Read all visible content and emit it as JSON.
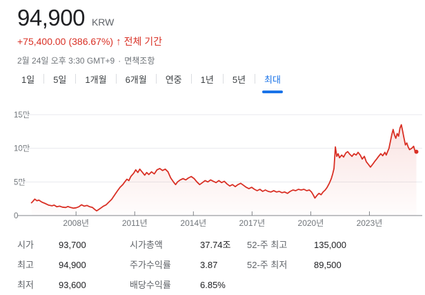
{
  "header": {
    "price": "94,900",
    "currency": "KRW",
    "change_amount": "+75,400.00",
    "change_percent": "(386.67%)",
    "change_arrow": "↑",
    "change_period": "전체 기간",
    "change_color": "#d93025",
    "datetime": "2월 24일 오후 3:30 GMT+9",
    "separator": "·",
    "disclaimer": "면책조항"
  },
  "tabs": {
    "items": [
      "1일",
      "5일",
      "1개월",
      "6개월",
      "연중",
      "1년",
      "5년",
      "최대"
    ],
    "selected": "최대",
    "selected_color": "#1a73e8"
  },
  "chart_data": {
    "type": "line",
    "title": "주가 차트 (최대 기간)",
    "unit": "KRW",
    "line_color": "#d93025",
    "fill_color_top": "rgba(217,48,37,0.15)",
    "fill_color_bottom": "rgba(217,48,37,0.01)",
    "grid": true,
    "x_range": [
      2005.1,
      2025.7
    ],
    "y_range": [
      0,
      150000
    ],
    "x_ticks": [
      {
        "year": 2008,
        "label": "2008년"
      },
      {
        "year": 2011,
        "label": "2011년"
      },
      {
        "year": 2014,
        "label": "2014년"
      },
      {
        "year": 2017,
        "label": "2017년"
      },
      {
        "year": 2020,
        "label": "2020년"
      },
      {
        "year": 2023,
        "label": "2023년"
      }
    ],
    "y_ticks": [
      {
        "value": 0,
        "label": "0"
      },
      {
        "value": 50000,
        "label": "5만"
      },
      {
        "value": 100000,
        "label": "10만"
      },
      {
        "value": 150000,
        "label": "15만"
      }
    ],
    "points": [
      [
        2005.72,
        19000
      ],
      [
        2005.79,
        21000
      ],
      [
        2005.89,
        24500
      ],
      [
        2006.0,
        22000
      ],
      [
        2006.1,
        23000
      ],
      [
        2006.25,
        20000
      ],
      [
        2006.42,
        18000
      ],
      [
        2006.6,
        15500
      ],
      [
        2006.77,
        14500
      ],
      [
        2006.88,
        15500
      ],
      [
        2007.02,
        13000
      ],
      [
        2007.16,
        14000
      ],
      [
        2007.3,
        12500
      ],
      [
        2007.47,
        12000
      ],
      [
        2007.58,
        13500
      ],
      [
        2007.72,
        12000
      ],
      [
        2007.86,
        11000
      ],
      [
        2008.0,
        11500
      ],
      [
        2008.14,
        13000
      ],
      [
        2008.28,
        16000
      ],
      [
        2008.42,
        14000
      ],
      [
        2008.56,
        15000
      ],
      [
        2008.7,
        13000
      ],
      [
        2008.84,
        12000
      ],
      [
        2008.98,
        8500
      ],
      [
        2009.05,
        7000
      ],
      [
        2009.16,
        9000
      ],
      [
        2009.26,
        11000
      ],
      [
        2009.4,
        14000
      ],
      [
        2009.54,
        16000
      ],
      [
        2009.68,
        20000
      ],
      [
        2009.82,
        24000
      ],
      [
        2009.96,
        30000
      ],
      [
        2010.1,
        36000
      ],
      [
        2010.25,
        42000
      ],
      [
        2010.39,
        46000
      ],
      [
        2010.49,
        50000
      ],
      [
        2010.6,
        54000
      ],
      [
        2010.7,
        52000
      ],
      [
        2010.8,
        58000
      ],
      [
        2010.95,
        63000
      ],
      [
        2011.05,
        68000
      ],
      [
        2011.16,
        64000
      ],
      [
        2011.26,
        69000
      ],
      [
        2011.37,
        65000
      ],
      [
        2011.51,
        60000
      ],
      [
        2011.61,
        64000
      ],
      [
        2011.72,
        61000
      ],
      [
        2011.86,
        65000
      ],
      [
        2012.0,
        62000
      ],
      [
        2012.14,
        68000
      ],
      [
        2012.28,
        70000
      ],
      [
        2012.42,
        67000
      ],
      [
        2012.56,
        69000
      ],
      [
        2012.7,
        65000
      ],
      [
        2012.84,
        56000
      ],
      [
        2012.98,
        50000
      ],
      [
        2013.09,
        46000
      ],
      [
        2013.19,
        50000
      ],
      [
        2013.33,
        53000
      ],
      [
        2013.47,
        55000
      ],
      [
        2013.61,
        53000
      ],
      [
        2013.75,
        56000
      ],
      [
        2013.89,
        58000
      ],
      [
        2014.04,
        55000
      ],
      [
        2014.18,
        50000
      ],
      [
        2014.32,
        46000
      ],
      [
        2014.46,
        49000
      ],
      [
        2014.6,
        52000
      ],
      [
        2014.74,
        50000
      ],
      [
        2014.88,
        53000
      ],
      [
        2015.02,
        51000
      ],
      [
        2015.16,
        49000
      ],
      [
        2015.3,
        52000
      ],
      [
        2015.44,
        49000
      ],
      [
        2015.58,
        51000
      ],
      [
        2015.72,
        47000
      ],
      [
        2015.86,
        44000
      ],
      [
        2016.0,
        46000
      ],
      [
        2016.14,
        43000
      ],
      [
        2016.28,
        46000
      ],
      [
        2016.42,
        48000
      ],
      [
        2016.56,
        45000
      ],
      [
        2016.7,
        42000
      ],
      [
        2016.84,
        40000
      ],
      [
        2016.98,
        42000
      ],
      [
        2017.12,
        39000
      ],
      [
        2017.26,
        37000
      ],
      [
        2017.4,
        39000
      ],
      [
        2017.54,
        36000
      ],
      [
        2017.68,
        38000
      ],
      [
        2017.82,
        36000
      ],
      [
        2017.96,
        35000
      ],
      [
        2018.11,
        37000
      ],
      [
        2018.25,
        35000
      ],
      [
        2018.39,
        36000
      ],
      [
        2018.53,
        34000
      ],
      [
        2018.67,
        35000
      ],
      [
        2018.81,
        33000
      ],
      [
        2018.95,
        36000
      ],
      [
        2019.09,
        38000
      ],
      [
        2019.23,
        37000
      ],
      [
        2019.37,
        39000
      ],
      [
        2019.51,
        38000
      ],
      [
        2019.65,
        39000
      ],
      [
        2019.79,
        37000
      ],
      [
        2019.93,
        38000
      ],
      [
        2020.04,
        35000
      ],
      [
        2020.14,
        30000
      ],
      [
        2020.21,
        26000
      ],
      [
        2020.32,
        30000
      ],
      [
        2020.42,
        33000
      ],
      [
        2020.53,
        31000
      ],
      [
        2020.63,
        35000
      ],
      [
        2020.74,
        38000
      ],
      [
        2020.84,
        42000
      ],
      [
        2020.95,
        48000
      ],
      [
        2021.05,
        55000
      ],
      [
        2021.12,
        62000
      ],
      [
        2021.19,
        70000
      ],
      [
        2021.26,
        102000
      ],
      [
        2021.33,
        88000
      ],
      [
        2021.4,
        92000
      ],
      [
        2021.47,
        86000
      ],
      [
        2021.58,
        90000
      ],
      [
        2021.68,
        87000
      ],
      [
        2021.79,
        93000
      ],
      [
        2021.89,
        95000
      ],
      [
        2022.0,
        91000
      ],
      [
        2022.11,
        88000
      ],
      [
        2022.21,
        92000
      ],
      [
        2022.32,
        90000
      ],
      [
        2022.42,
        94000
      ],
      [
        2022.53,
        90000
      ],
      [
        2022.63,
        84000
      ],
      [
        2022.74,
        88000
      ],
      [
        2022.84,
        80000
      ],
      [
        2022.95,
        76000
      ],
      [
        2023.05,
        72000
      ],
      [
        2023.16,
        76000
      ],
      [
        2023.26,
        80000
      ],
      [
        2023.37,
        84000
      ],
      [
        2023.47,
        88000
      ],
      [
        2023.58,
        92000
      ],
      [
        2023.68,
        89000
      ],
      [
        2023.79,
        94000
      ],
      [
        2023.86,
        90000
      ],
      [
        2023.93,
        95000
      ],
      [
        2024.0,
        100000
      ],
      [
        2024.07,
        110000
      ],
      [
        2024.14,
        120000
      ],
      [
        2024.21,
        128000
      ],
      [
        2024.28,
        120000
      ],
      [
        2024.35,
        115000
      ],
      [
        2024.42,
        122000
      ],
      [
        2024.49,
        118000
      ],
      [
        2024.56,
        130000
      ],
      [
        2024.63,
        135000
      ],
      [
        2024.7,
        125000
      ],
      [
        2024.77,
        115000
      ],
      [
        2024.84,
        105000
      ],
      [
        2024.91,
        108000
      ],
      [
        2024.98,
        102000
      ],
      [
        2025.05,
        98000
      ],
      [
        2025.16,
        100000
      ],
      [
        2025.26,
        103000
      ],
      [
        2025.33,
        96000
      ],
      [
        2025.4,
        94900
      ]
    ]
  },
  "stats": {
    "columns": [
      {
        "rows": [
          {
            "label": "시가",
            "value": "93,700"
          },
          {
            "label": "최고",
            "value": "94,900"
          },
          {
            "label": "최저",
            "value": "93,600"
          }
        ]
      },
      {
        "rows": [
          {
            "label": "시가총액",
            "value": "37.74조"
          },
          {
            "label": "주가수익률",
            "value": "3.87"
          },
          {
            "label": "배당수익률",
            "value": "6.85%"
          }
        ]
      },
      {
        "rows": [
          {
            "label": "52-주 최고",
            "value": "135,000"
          },
          {
            "label": "52-주 최저",
            "value": "89,500"
          }
        ]
      }
    ]
  }
}
